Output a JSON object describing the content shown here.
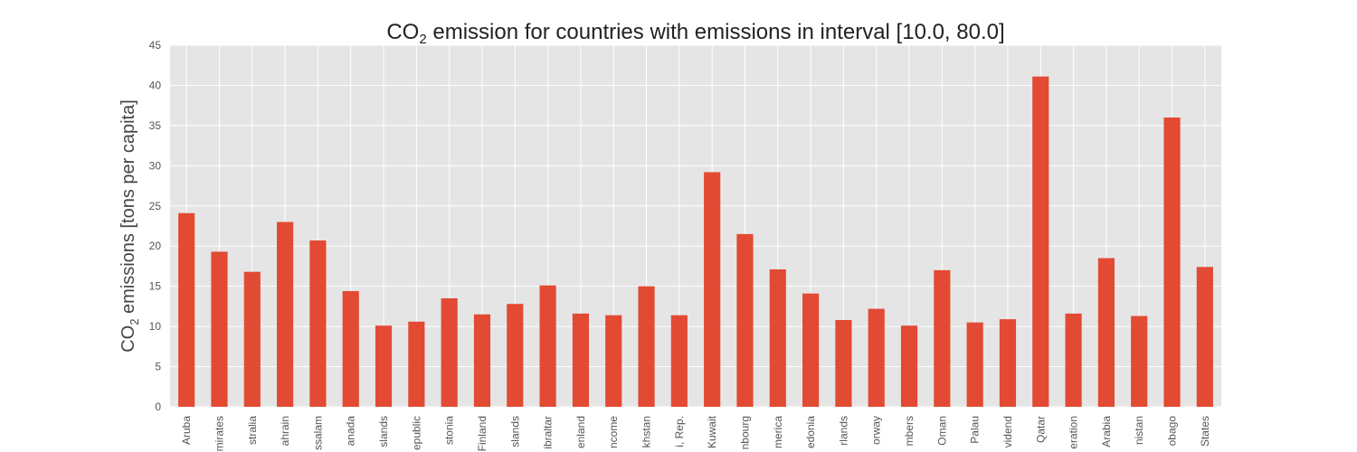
{
  "chart_data": {
    "type": "bar",
    "title_main": "CO",
    "title_sub": "2",
    "title_rest": " emission for countries with emissions in interval [10.0, 80.0]",
    "ylabel_main": "CO",
    "ylabel_sub": "2",
    "ylabel_rest": " emissions [tons per capita]",
    "xlabel": "",
    "ylim": [
      0,
      45
    ],
    "yticks": [
      0,
      5,
      10,
      15,
      20,
      25,
      30,
      35,
      40,
      45
    ],
    "grid": true,
    "legend": "none",
    "categories": [
      "Aruba",
      "mirates",
      "stralia",
      "ahrain",
      "ssalam",
      "anada",
      "slands",
      "epublic",
      "stonia",
      "Finland",
      "slands",
      "ibraltar",
      "enland",
      "ncome",
      "khstan",
      "i, Rep.",
      "Kuwait",
      "nbourg",
      "merica",
      "edonia",
      "rlands",
      "orway",
      "mbers",
      "Oman",
      "Palau",
      "vidend",
      "Qatar",
      "eration",
      "Arabia",
      "nistan",
      "obago",
      "States"
    ],
    "values": [
      24.1,
      19.3,
      16.8,
      23.0,
      20.7,
      14.4,
      10.1,
      10.6,
      13.5,
      11.5,
      12.8,
      15.1,
      11.6,
      11.4,
      15.0,
      11.4,
      29.2,
      21.5,
      17.1,
      14.1,
      10.8,
      12.2,
      10.1,
      17.0,
      10.5,
      10.9,
      41.1,
      11.6,
      18.5,
      11.3,
      36.0,
      17.4
    ],
    "colors": {
      "bar": "#e24a33",
      "background": "#e5e5e5",
      "grid": "#ffffff"
    }
  }
}
